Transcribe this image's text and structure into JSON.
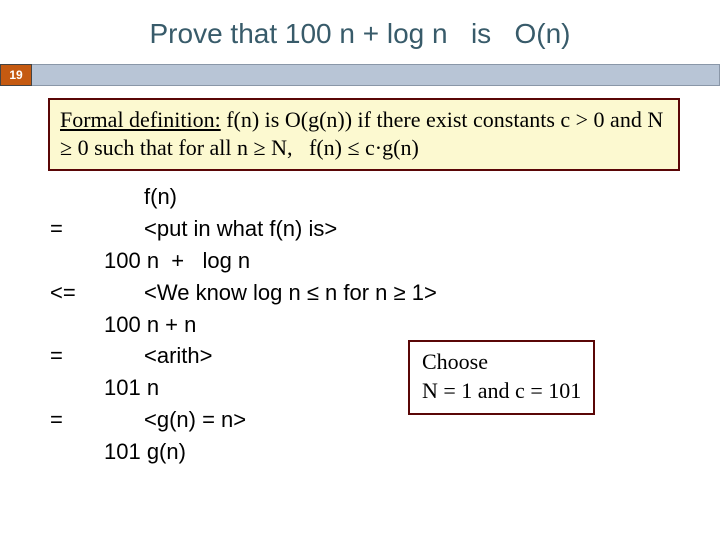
{
  "title": "Prove that 100 n + log n   is   O(n)",
  "slide_number": "19",
  "definition": {
    "ul_text": "Formal definition:",
    "rest": " f(n) is O(g(n)) if there exist constants c > 0 and N ≥ 0 such that for all n ≥ N,   f(n) ≤ c·g(n)"
  },
  "proof": [
    {
      "op": "",
      "text": "f(n)",
      "indent": true
    },
    {
      "op": "=",
      "text": "<put in what f(n) is>",
      "indent": true
    },
    {
      "op": "",
      "text": "100 n  +   log n",
      "indent": false
    },
    {
      "op": "<=",
      "text": "<We know log n ≤ n for n ≥ 1>",
      "indent": true
    },
    {
      "op": "",
      "text": "100 n + n",
      "indent": false
    },
    {
      "op": "=",
      "text": "<arith>",
      "indent": true
    },
    {
      "op": "",
      "text": "101 n",
      "indent": false
    },
    {
      "op": "=",
      "text": "<g(n) = n>",
      "indent": true
    },
    {
      "op": "",
      "text": "101 g(n)",
      "indent": false
    }
  ],
  "choose": {
    "line1": "Choose",
    "line2": "N = 1 and c = 101"
  },
  "colors": {
    "title": "#385b6a",
    "badge_bg": "#c55a11",
    "stripe_bg": "#b8c5d6",
    "box_border": "#5a0606",
    "def_bg": "#fcf9d0"
  }
}
